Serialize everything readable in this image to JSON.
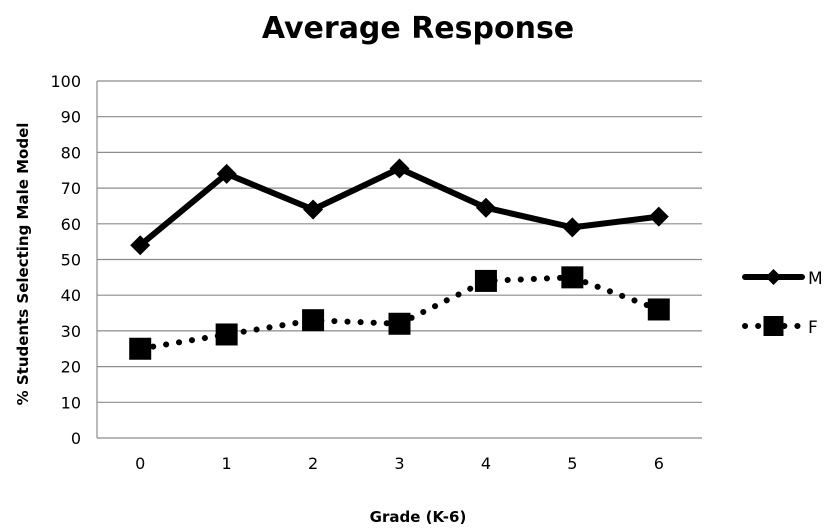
{
  "chart_data": {
    "type": "line",
    "title": "Average Response",
    "xlabel": "Grade (K-6)",
    "ylabel": "% Students Selecting Male Model",
    "categories": [
      "0",
      "1",
      "2",
      "3",
      "4",
      "5",
      "6"
    ],
    "y_ticks": [
      "0",
      "10",
      "20",
      "30",
      "40",
      "50",
      "60",
      "70",
      "80",
      "90",
      "100"
    ],
    "ylim": [
      0,
      100
    ],
    "grid": true,
    "legend_position": "right",
    "series": [
      {
        "name": "M",
        "values": [
          54,
          74,
          64,
          75.5,
          64.5,
          59,
          62
        ],
        "marker": "diamond",
        "line_style": "solid",
        "color": "#000000"
      },
      {
        "name": "F",
        "values": [
          25,
          29,
          33,
          32,
          44,
          45,
          36
        ],
        "marker": "square",
        "line_style": "dotted",
        "color": "#000000"
      }
    ]
  }
}
